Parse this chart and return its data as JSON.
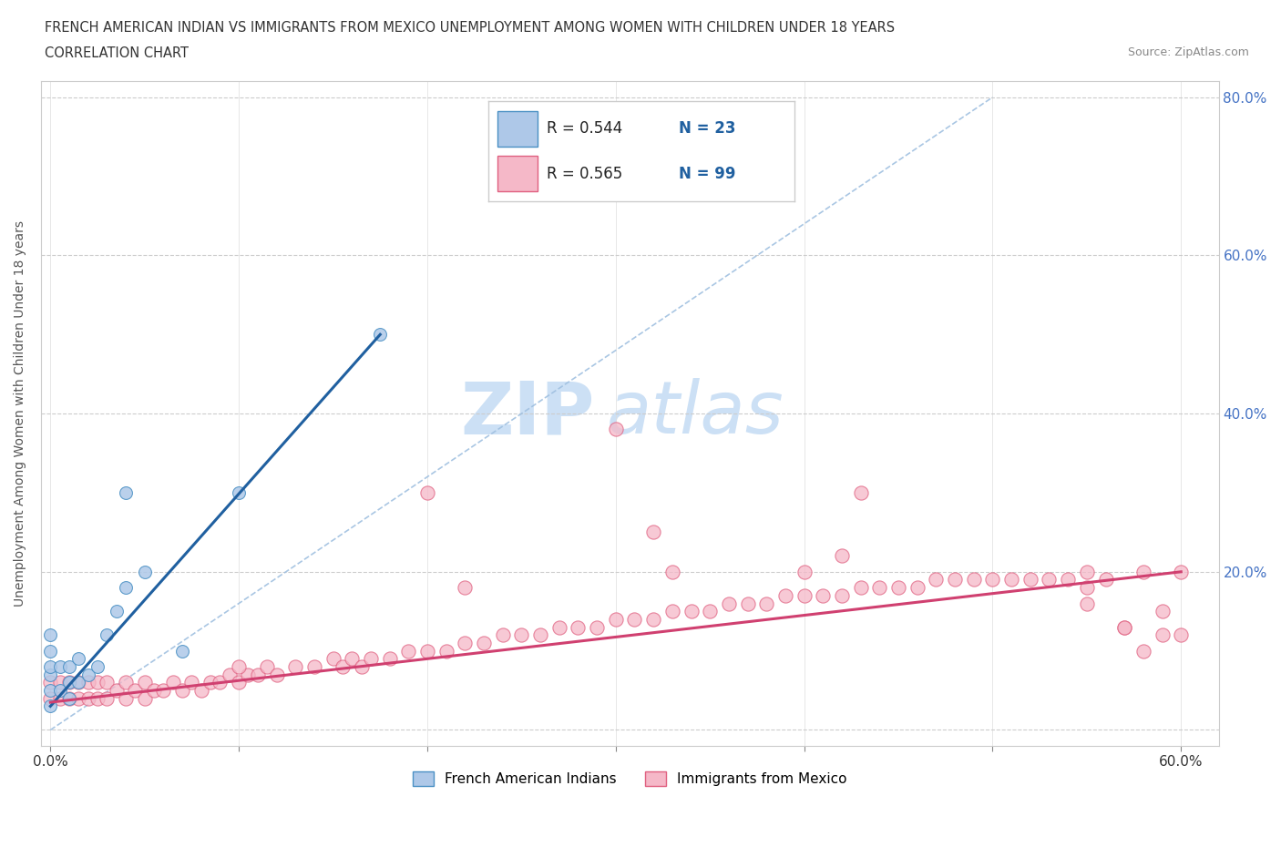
{
  "title_line1": "FRENCH AMERICAN INDIAN VS IMMIGRANTS FROM MEXICO UNEMPLOYMENT AMONG WOMEN WITH CHILDREN UNDER 18 YEARS",
  "title_line2": "CORRELATION CHART",
  "source": "Source: ZipAtlas.com",
  "ylabel": "Unemployment Among Women with Children Under 18 years",
  "xlim": [
    -0.005,
    0.62
  ],
  "ylim": [
    -0.02,
    0.82
  ],
  "xticks": [
    0.0,
    0.1,
    0.2,
    0.3,
    0.4,
    0.5,
    0.6
  ],
  "xtick_labels": [
    "0.0%",
    "",
    "",
    "",
    "",
    "",
    "60.0%"
  ],
  "yticks": [
    0.0,
    0.2,
    0.4,
    0.6,
    0.8
  ],
  "ytick_labels_right": [
    "",
    "20.0%",
    "40.0%",
    "60.0%",
    "80.0%"
  ],
  "legend_r1": "R = 0.544",
  "legend_n1": "N = 23",
  "legend_r2": "R = 0.565",
  "legend_n2": "N = 99",
  "color_blue_fill": "#aec8e8",
  "color_blue_edge": "#4a90c4",
  "color_pink_fill": "#f5b8c8",
  "color_pink_edge": "#e06080",
  "color_blue_line": "#2060a0",
  "color_pink_line": "#d04070",
  "color_dashed": "#a0c0e0",
  "watermark_zip": "ZIP",
  "watermark_atlas": "atlas",
  "blue_trendline_x": [
    0.0,
    0.175
  ],
  "blue_trendline_y": [
    0.03,
    0.5
  ],
  "pink_trendline_x": [
    0.0,
    0.6
  ],
  "pink_trendline_y": [
    0.035,
    0.2
  ],
  "french_american_indian_x": [
    0.0,
    0.0,
    0.0,
    0.0,
    0.0,
    0.0,
    0.005,
    0.005,
    0.01,
    0.01,
    0.01,
    0.015,
    0.015,
    0.02,
    0.025,
    0.03,
    0.035,
    0.04,
    0.04,
    0.05,
    0.07,
    0.1,
    0.175
  ],
  "french_american_indian_y": [
    0.03,
    0.05,
    0.07,
    0.08,
    0.1,
    0.12,
    0.05,
    0.08,
    0.04,
    0.06,
    0.08,
    0.06,
    0.09,
    0.07,
    0.08,
    0.12,
    0.15,
    0.18,
    0.3,
    0.2,
    0.1,
    0.3,
    0.5
  ],
  "mexico_x": [
    0.0,
    0.0,
    0.005,
    0.005,
    0.01,
    0.01,
    0.015,
    0.015,
    0.02,
    0.02,
    0.025,
    0.025,
    0.03,
    0.03,
    0.035,
    0.04,
    0.04,
    0.045,
    0.05,
    0.05,
    0.055,
    0.06,
    0.065,
    0.07,
    0.075,
    0.08,
    0.085,
    0.09,
    0.095,
    0.1,
    0.105,
    0.11,
    0.115,
    0.12,
    0.13,
    0.14,
    0.15,
    0.155,
    0.16,
    0.165,
    0.17,
    0.18,
    0.19,
    0.2,
    0.21,
    0.22,
    0.23,
    0.24,
    0.25,
    0.26,
    0.27,
    0.28,
    0.29,
    0.3,
    0.31,
    0.32,
    0.33,
    0.34,
    0.35,
    0.36,
    0.37,
    0.38,
    0.39,
    0.4,
    0.41,
    0.42,
    0.43,
    0.44,
    0.45,
    0.46,
    0.47,
    0.48,
    0.49,
    0.5,
    0.51,
    0.52,
    0.53,
    0.54,
    0.55,
    0.56,
    0.57,
    0.58,
    0.59,
    0.6,
    0.55,
    0.57,
    0.58,
    0.59,
    0.6,
    0.55,
    0.4,
    0.42,
    0.43,
    0.3,
    0.32,
    0.33,
    0.2,
    0.22,
    0.1
  ],
  "mexico_y": [
    0.04,
    0.06,
    0.04,
    0.06,
    0.04,
    0.06,
    0.04,
    0.06,
    0.04,
    0.06,
    0.04,
    0.06,
    0.04,
    0.06,
    0.05,
    0.04,
    0.06,
    0.05,
    0.04,
    0.06,
    0.05,
    0.05,
    0.06,
    0.05,
    0.06,
    0.05,
    0.06,
    0.06,
    0.07,
    0.06,
    0.07,
    0.07,
    0.08,
    0.07,
    0.08,
    0.08,
    0.09,
    0.08,
    0.09,
    0.08,
    0.09,
    0.09,
    0.1,
    0.1,
    0.1,
    0.11,
    0.11,
    0.12,
    0.12,
    0.12,
    0.13,
    0.13,
    0.13,
    0.14,
    0.14,
    0.14,
    0.15,
    0.15,
    0.15,
    0.16,
    0.16,
    0.16,
    0.17,
    0.17,
    0.17,
    0.17,
    0.18,
    0.18,
    0.18,
    0.18,
    0.19,
    0.19,
    0.19,
    0.19,
    0.19,
    0.19,
    0.19,
    0.19,
    0.2,
    0.19,
    0.13,
    0.1,
    0.12,
    0.2,
    0.18,
    0.13,
    0.2,
    0.15,
    0.12,
    0.16,
    0.2,
    0.22,
    0.3,
    0.38,
    0.25,
    0.2,
    0.3,
    0.18,
    0.08
  ]
}
